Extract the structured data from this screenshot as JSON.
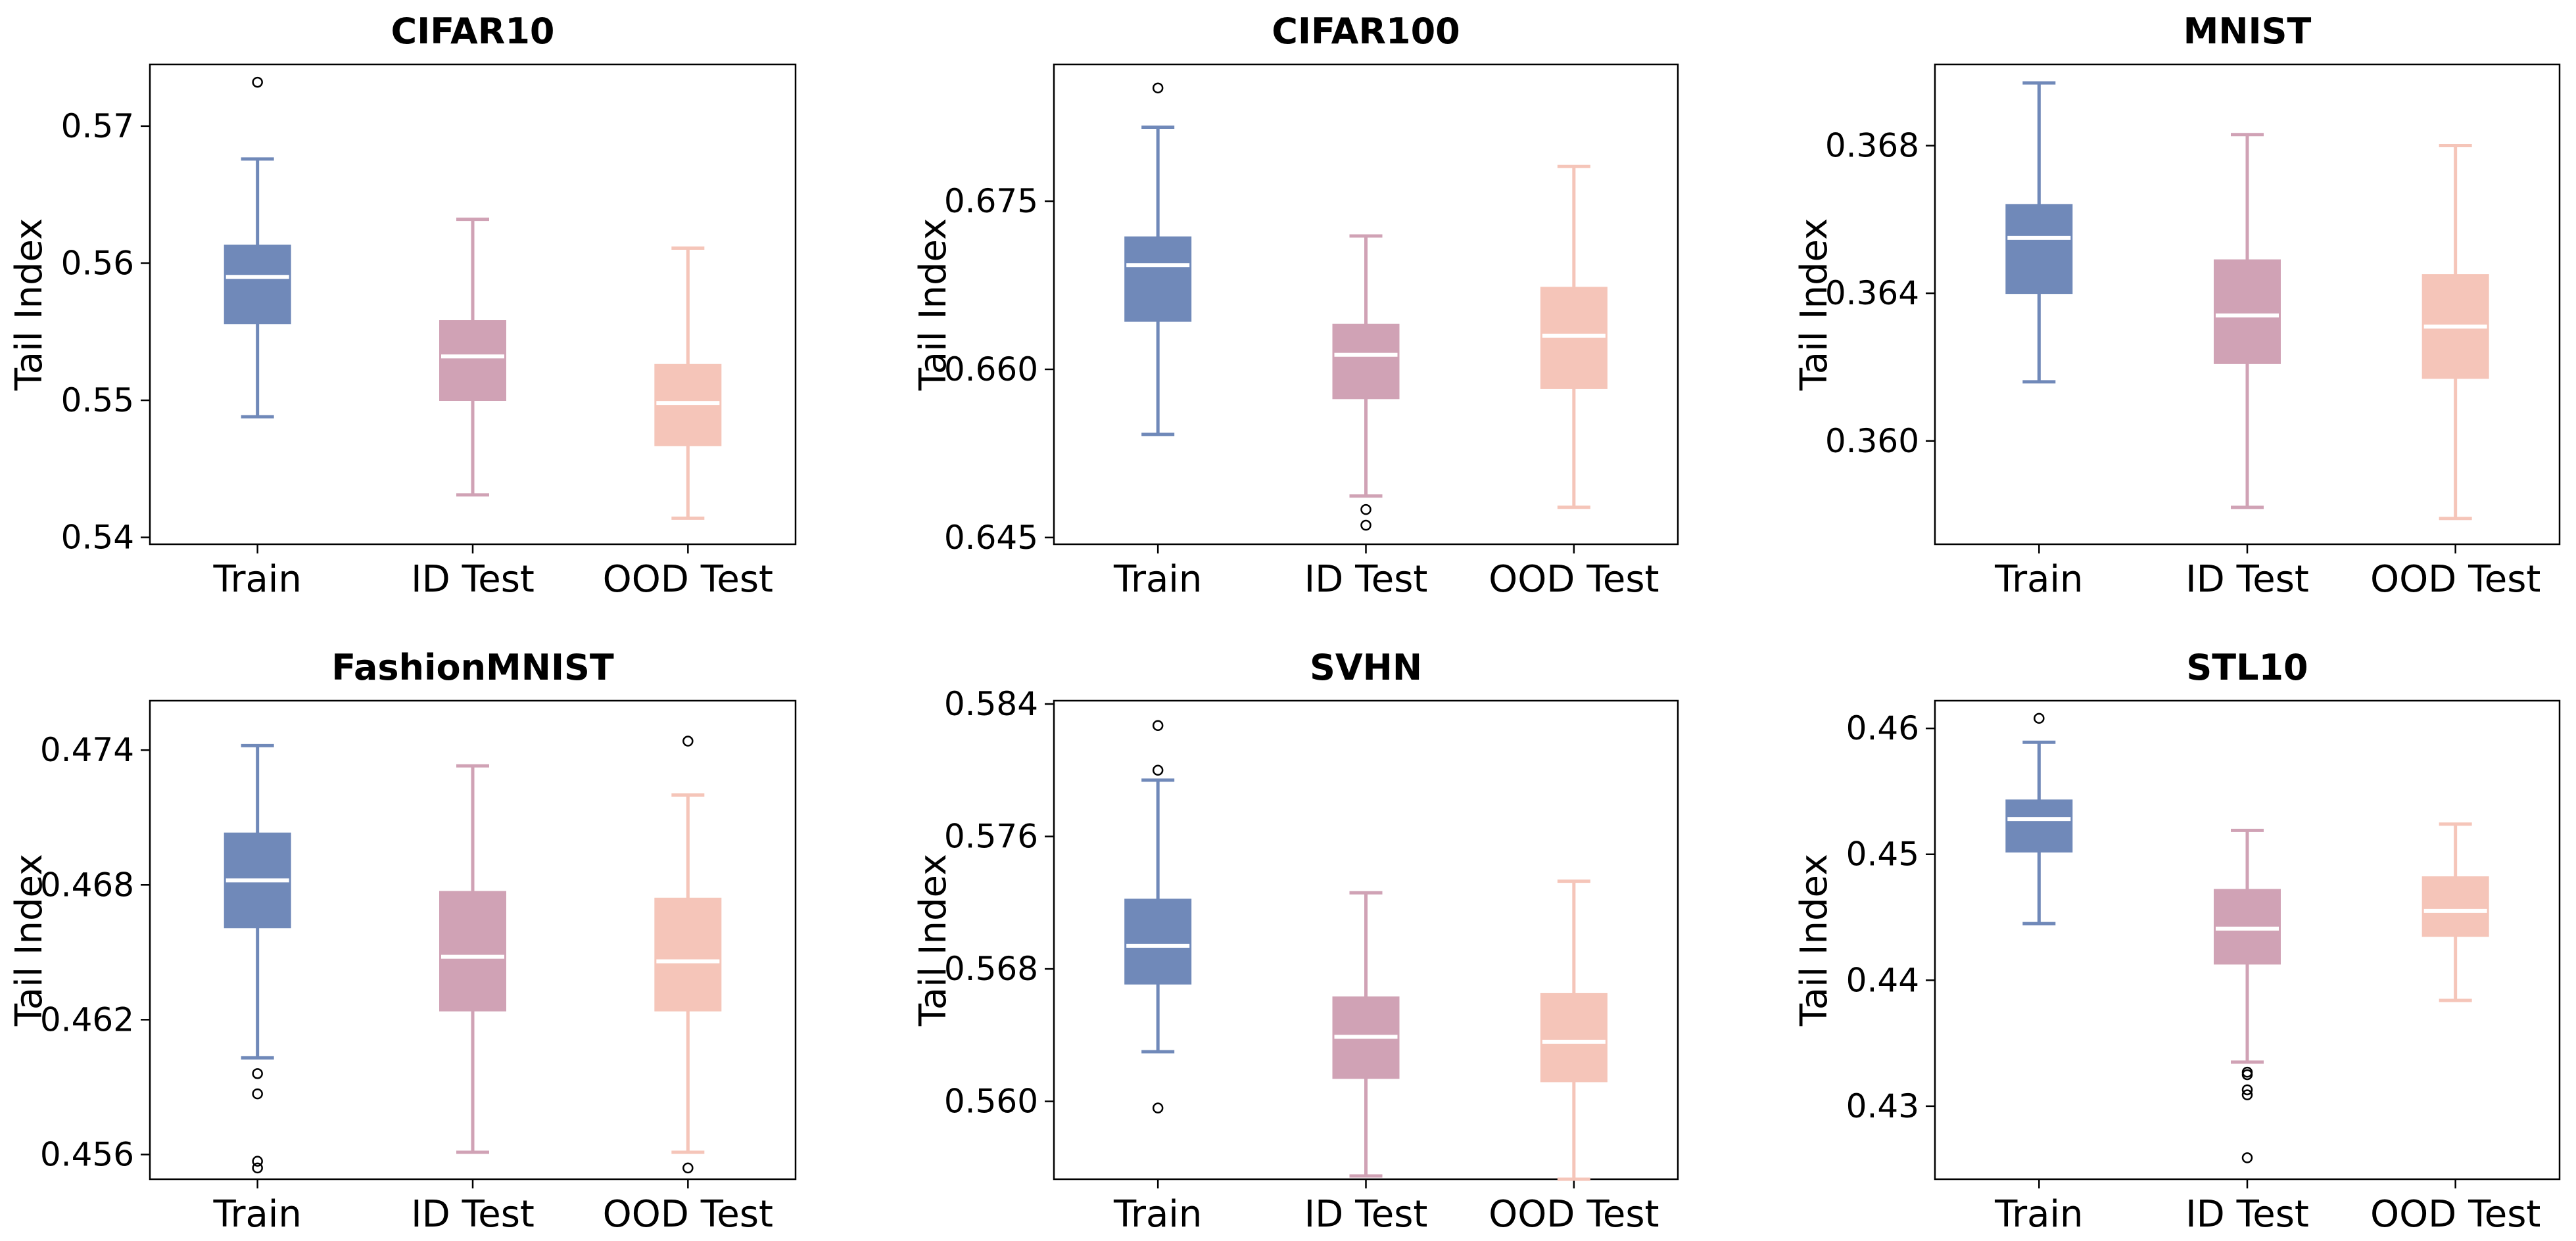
{
  "chart_data": [
    {
      "type": "box",
      "title": "CIFAR10",
      "ylabel": "Tail Index",
      "categories": [
        "Train",
        "ID Test",
        "OOD Test"
      ],
      "ylim": [
        0.5395,
        0.5745
      ],
      "yticks": [
        0.54,
        0.55,
        0.56,
        0.57
      ],
      "ytick_labels": [
        "0.54",
        "0.55",
        "0.56",
        "0.57"
      ],
      "boxes": [
        {
          "whislo": 0.5488,
          "q1": 0.5556,
          "med": 0.559,
          "q3": 0.5613,
          "whishi": 0.5676,
          "fliers": [
            0.5732
          ]
        },
        {
          "whislo": 0.5431,
          "q1": 0.55,
          "med": 0.5532,
          "q3": 0.5558,
          "whishi": 0.5632,
          "fliers": []
        },
        {
          "whislo": 0.5414,
          "q1": 0.5467,
          "med": 0.5498,
          "q3": 0.5526,
          "whishi": 0.5611,
          "fliers": []
        }
      ]
    },
    {
      "type": "box",
      "title": "CIFAR100",
      "ylabel": "Tail Index",
      "categories": [
        "Train",
        "ID Test",
        "OOD Test"
      ],
      "ylim": [
        0.6444,
        0.6872
      ],
      "yticks": [
        0.645,
        0.66,
        0.675
      ],
      "ytick_labels": [
        "0.645",
        "0.660",
        "0.675"
      ],
      "boxes": [
        {
          "whislo": 0.6542,
          "q1": 0.6643,
          "med": 0.6693,
          "q3": 0.6718,
          "whishi": 0.6816,
          "fliers": [
            0.6851
          ]
        },
        {
          "whislo": 0.6487,
          "q1": 0.6574,
          "med": 0.6613,
          "q3": 0.664,
          "whishi": 0.6719,
          "fliers": [
            0.6475,
            0.6461
          ]
        },
        {
          "whislo": 0.6477,
          "q1": 0.6583,
          "med": 0.663,
          "q3": 0.6673,
          "whishi": 0.6781,
          "fliers": []
        }
      ]
    },
    {
      "type": "box",
      "title": "MNIST",
      "ylabel": "Tail Index",
      "categories": [
        "Train",
        "ID Test",
        "OOD Test"
      ],
      "ylim": [
        0.3572,
        0.3702
      ],
      "yticks": [
        0.36,
        0.364,
        0.368
      ],
      "ytick_labels": [
        "0.360",
        "0.364",
        "0.368"
      ],
      "boxes": [
        {
          "whislo": 0.3616,
          "q1": 0.364,
          "med": 0.3655,
          "q3": 0.3664,
          "whishi": 0.3697,
          "fliers": []
        },
        {
          "whislo": 0.3582,
          "q1": 0.3621,
          "med": 0.3634,
          "q3": 0.3649,
          "whishi": 0.3683,
          "fliers": []
        },
        {
          "whislo": 0.3579,
          "q1": 0.3617,
          "med": 0.3631,
          "q3": 0.3645,
          "whishi": 0.368,
          "fliers": []
        }
      ]
    },
    {
      "type": "box",
      "title": "FashionMNIST",
      "ylabel": "Tail Index",
      "categories": [
        "Train",
        "ID Test",
        "OOD Test"
      ],
      "ylim": [
        0.4549,
        0.4762
      ],
      "yticks": [
        0.456,
        0.462,
        0.468,
        0.474
      ],
      "ytick_labels": [
        "0.456",
        "0.462",
        "0.468",
        "0.474"
      ],
      "boxes": [
        {
          "whislo": 0.4603,
          "q1": 0.4661,
          "med": 0.4682,
          "q3": 0.4703,
          "whishi": 0.4742,
          "fliers": [
            0.4596,
            0.4587,
            0.4557,
            0.4554
          ]
        },
        {
          "whislo": 0.4561,
          "q1": 0.4624,
          "med": 0.4648,
          "q3": 0.4677,
          "whishi": 0.4733,
          "fliers": []
        },
        {
          "whislo": 0.4561,
          "q1": 0.4624,
          "med": 0.4646,
          "q3": 0.4674,
          "whishi": 0.472,
          "fliers": [
            0.4744,
            0.4554
          ]
        }
      ]
    },
    {
      "type": "box",
      "title": "SVHN",
      "ylabel": "Tail Index",
      "categories": [
        "Train",
        "ID Test",
        "OOD Test"
      ],
      "ylim": [
        0.5553,
        0.5842
      ],
      "yticks": [
        0.56,
        0.568,
        0.576,
        0.584
      ],
      "ytick_labels": [
        "0.560",
        "0.568",
        "0.576",
        "0.584"
      ],
      "boxes": [
        {
          "whislo": 0.563,
          "q1": 0.5671,
          "med": 0.5694,
          "q3": 0.5722,
          "whishi": 0.5794,
          "fliers": [
            0.5827,
            0.58,
            0.5596
          ]
        },
        {
          "whislo": 0.5555,
          "q1": 0.5614,
          "med": 0.5639,
          "q3": 0.5663,
          "whishi": 0.5726,
          "fliers": []
        },
        {
          "whislo": 0.5553,
          "q1": 0.5612,
          "med": 0.5636,
          "q3": 0.5665,
          "whishi": 0.5733,
          "fliers": []
        }
      ]
    },
    {
      "type": "box",
      "title": "STL10",
      "ylabel": "Tail Index",
      "categories": [
        "Train",
        "ID Test",
        "OOD Test"
      ],
      "ylim": [
        0.4242,
        0.4622
      ],
      "yticks": [
        0.43,
        0.44,
        0.45,
        0.46
      ],
      "ytick_labels": [
        "0.43",
        "0.44",
        "0.45",
        "0.46"
      ],
      "boxes": [
        {
          "whislo": 0.4445,
          "q1": 0.4502,
          "med": 0.4528,
          "q3": 0.4543,
          "whishi": 0.4589,
          "fliers": [
            0.4608
          ]
        },
        {
          "whislo": 0.4335,
          "q1": 0.4413,
          "med": 0.4441,
          "q3": 0.4472,
          "whishi": 0.4519,
          "fliers": [
            0.4327,
            0.4325,
            0.4313,
            0.4309,
            0.4259
          ]
        },
        {
          "whislo": 0.4384,
          "q1": 0.4435,
          "med": 0.4455,
          "q3": 0.4482,
          "whishi": 0.4524,
          "fliers": []
        }
      ]
    }
  ],
  "colors": [
    "#7089b9",
    "#d0a2b5",
    "#f5c5b9"
  ],
  "median_color": "#ffffff"
}
